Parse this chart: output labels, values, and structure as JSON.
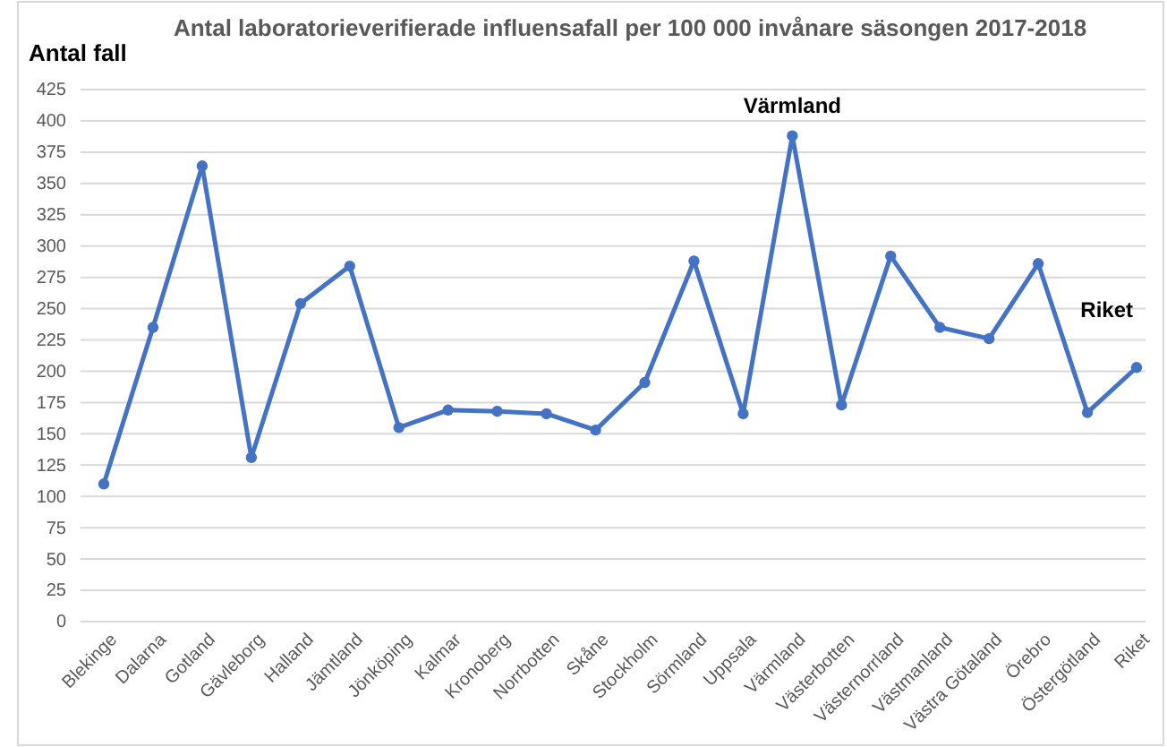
{
  "chart_data": {
    "type": "line",
    "title": "Antal laboratorieverifierade influensafall per 100 000 invånare säsongen 2017-2018",
    "ylabel": "Antal fall",
    "categories": [
      "Blekinge",
      "Dalarna",
      "Gotland",
      "Gävleborg",
      "Halland",
      "Jämtland",
      "Jönköping",
      "Kalmar",
      "Kronoberg",
      "Norrbotten",
      "Skåne",
      "Stockholm",
      "Sörmland",
      "Uppsala",
      "Värmland",
      "Västerbotten",
      "Västernorrland",
      "Västmanland",
      "Västra Götaland",
      "Örebro",
      "Östergötland",
      "Riket"
    ],
    "series": [
      {
        "color": "#4472c4",
        "values": [
          110,
          235,
          364,
          131,
          254,
          284,
          155,
          169,
          168,
          166,
          153,
          191,
          288,
          166,
          388,
          173,
          292,
          235,
          226,
          286,
          167,
          203
        ]
      }
    ],
    "ylim": [
      0,
      425
    ],
    "yticks": [
      0,
      25,
      50,
      75,
      100,
      125,
      150,
      175,
      200,
      225,
      250,
      275,
      300,
      325,
      350,
      375,
      400,
      425
    ],
    "grid": "y",
    "marker": "circle",
    "line_style": "solid",
    "annotations": [
      {
        "text": "Värmland",
        "x": "Värmland",
        "y": 388
      },
      {
        "text": "Riket",
        "x": "Riket",
        "y": 203
      }
    ]
  }
}
